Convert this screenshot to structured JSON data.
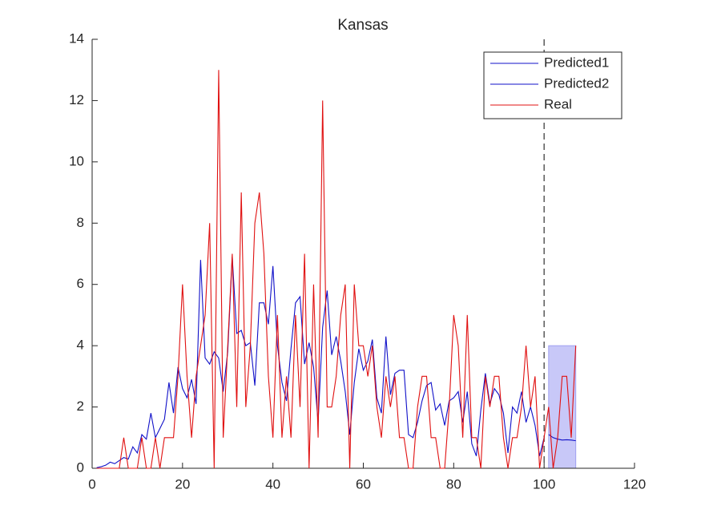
{
  "chart_data": {
    "type": "line",
    "title": "Kansas",
    "xlim": [
      0,
      120
    ],
    "xticks": [
      0,
      20,
      40,
      60,
      80,
      100,
      120
    ],
    "ylim": [
      0,
      14
    ],
    "yticks": [
      0,
      2,
      4,
      6,
      8,
      10,
      12,
      14
    ],
    "legend": "upper right",
    "vline": 100,
    "shaded_region": {
      "x": [
        101,
        107
      ],
      "y": [
        0,
        4
      ],
      "color": "#c8c8f8"
    },
    "series": [
      {
        "name": "Predicted1",
        "color": "#1010c8",
        "x": [
          1,
          2,
          3,
          4,
          5,
          6,
          7,
          8,
          9,
          10,
          11,
          12,
          13,
          14,
          15,
          16,
          17,
          18,
          19,
          20,
          21,
          22,
          23,
          24,
          25,
          26,
          27,
          28,
          29,
          30,
          31,
          32,
          33,
          34,
          35,
          36,
          37,
          38,
          39,
          40,
          41,
          42,
          43,
          44,
          45,
          46,
          47,
          48,
          49,
          50,
          51,
          52,
          53,
          54,
          55,
          56,
          57,
          58,
          59,
          60,
          61,
          62,
          63,
          64,
          65,
          66,
          67,
          68,
          69,
          70,
          71,
          72,
          73,
          74,
          75,
          76,
          77,
          78,
          79,
          80,
          81,
          82,
          83,
          84,
          85,
          86,
          87,
          88,
          89,
          90,
          91,
          92,
          93,
          94,
          95,
          96,
          97,
          98,
          99,
          100
        ],
        "values": [
          0.02,
          0.05,
          0.1,
          0.2,
          0.15,
          0.25,
          0.35,
          0.3,
          0.7,
          0.5,
          1.1,
          0.95,
          1.8,
          1.0,
          1.3,
          1.6,
          2.8,
          1.8,
          3.3,
          2.6,
          2.3,
          2.9,
          2.1,
          6.8,
          3.6,
          3.4,
          3.8,
          3.6,
          2.5,
          3.8,
          6.9,
          4.4,
          4.5,
          4.0,
          4.1,
          2.7,
          5.4,
          5.4,
          4.7,
          6.6,
          4.0,
          2.8,
          2.2,
          3.9,
          5.4,
          5.6,
          3.4,
          4.1,
          3.3,
          1.5,
          4.6,
          5.8,
          3.7,
          4.3,
          3.5,
          2.5,
          1.1,
          2.8,
          3.9,
          3.2,
          3.5,
          4.2,
          2.3,
          1.8,
          4.3,
          2.4,
          3.1,
          3.2,
          3.2,
          1.1,
          1.0,
          1.5,
          2.2,
          2.7,
          2.8,
          1.9,
          2.1,
          1.4,
          2.2,
          2.3,
          2.5,
          1.5,
          2.5,
          0.8,
          0.4,
          1.9,
          3.1,
          2.1,
          2.6,
          2.4,
          1.8,
          0.5,
          2.0,
          1.8,
          2.5,
          1.5,
          2.0,
          1.4,
          0.4,
          1.0
        ]
      },
      {
        "name": "Predicted2",
        "color": "#1010c8",
        "x": [
          101,
          102,
          103,
          104,
          105,
          106,
          107
        ],
        "values": [
          1.1,
          1.0,
          0.95,
          0.92,
          0.93,
          0.92,
          0.9
        ]
      },
      {
        "name": "Real",
        "color": "#e01010",
        "x": [
          1,
          2,
          3,
          4,
          5,
          6,
          7,
          8,
          9,
          10,
          11,
          12,
          13,
          14,
          15,
          16,
          17,
          18,
          19,
          20,
          21,
          22,
          23,
          24,
          25,
          26,
          27,
          28,
          29,
          30,
          31,
          32,
          33,
          34,
          35,
          36,
          37,
          38,
          39,
          40,
          41,
          42,
          43,
          44,
          45,
          46,
          47,
          48,
          49,
          50,
          51,
          52,
          53,
          54,
          55,
          56,
          57,
          58,
          59,
          60,
          61,
          62,
          63,
          64,
          65,
          66,
          67,
          68,
          69,
          70,
          71,
          72,
          73,
          74,
          75,
          76,
          77,
          78,
          79,
          80,
          81,
          82,
          83,
          84,
          85,
          86,
          87,
          88,
          89,
          90,
          91,
          92,
          93,
          94,
          95,
          96,
          97,
          98,
          99,
          100,
          101,
          102,
          103,
          104,
          105,
          106,
          107
        ],
        "values": [
          0,
          0,
          0,
          0,
          0,
          0,
          1,
          0,
          0,
          0,
          1,
          0,
          0,
          1,
          0,
          1,
          1,
          1,
          3,
          6,
          3,
          1,
          3,
          4,
          5,
          8,
          0,
          13,
          1,
          4,
          7,
          2,
          9,
          2,
          4,
          8,
          9,
          7,
          3,
          1,
          5,
          1,
          3,
          1,
          5,
          2,
          7,
          0,
          6,
          1,
          12,
          2,
          2,
          3,
          5,
          6,
          0,
          6,
          4,
          4,
          3,
          4,
          2,
          1,
          3,
          2,
          3,
          1,
          1,
          0,
          0,
          2,
          3,
          3,
          1,
          1,
          0,
          0,
          2,
          5,
          4,
          1,
          5,
          1,
          1,
          0,
          3,
          2,
          3,
          3,
          1,
          0,
          1,
          1,
          2,
          4,
          2,
          3,
          0,
          1,
          2,
          0,
          1,
          3,
          3,
          1,
          4
        ]
      }
    ]
  }
}
